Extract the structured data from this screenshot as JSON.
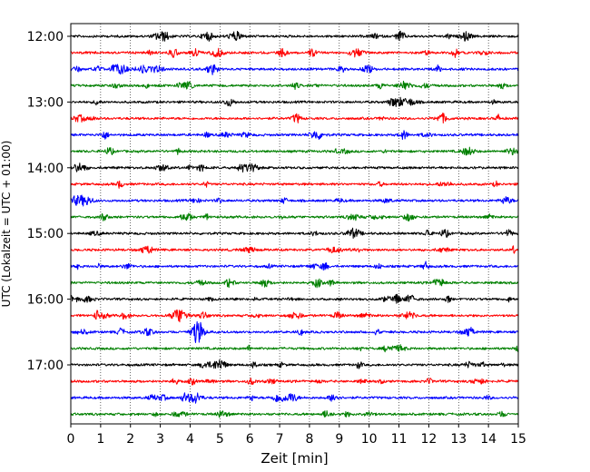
{
  "chart_data": {
    "type": "line",
    "title": "",
    "xlabel": "Zeit  [min]",
    "ylabel": "UTC (Lokalzeit = UTC + 01:00)",
    "xlim": [
      0,
      15
    ],
    "x_ticks": [
      0,
      1,
      2,
      3,
      4,
      5,
      6,
      7,
      8,
      9,
      10,
      11,
      12,
      13,
      14,
      15
    ],
    "y_tick_labels": [
      "12:00",
      "13:00",
      "14:00",
      "15:00",
      "16:00",
      "17:00"
    ],
    "row_interval_minutes": 15,
    "start_time": "12:00",
    "end_time": "17:45",
    "grid": {
      "vertical": true,
      "horizontal": false,
      "style": "dotted"
    },
    "legend": "none",
    "row_colors": [
      "#000000",
      "#ff0000",
      "#0000ff",
      "#008000"
    ],
    "rows": [
      {
        "start": "12:00",
        "color": "#000000"
      },
      {
        "start": "12:15",
        "color": "#ff0000"
      },
      {
        "start": "12:30",
        "color": "#0000ff"
      },
      {
        "start": "12:45",
        "color": "#008000"
      },
      {
        "start": "13:00",
        "color": "#000000"
      },
      {
        "start": "13:15",
        "color": "#ff0000"
      },
      {
        "start": "13:30",
        "color": "#0000ff"
      },
      {
        "start": "13:45",
        "color": "#008000"
      },
      {
        "start": "14:00",
        "color": "#000000"
      },
      {
        "start": "14:15",
        "color": "#ff0000"
      },
      {
        "start": "14:30",
        "color": "#0000ff"
      },
      {
        "start": "14:45",
        "color": "#008000"
      },
      {
        "start": "15:00",
        "color": "#000000"
      },
      {
        "start": "15:15",
        "color": "#ff0000"
      },
      {
        "start": "15:30",
        "color": "#0000ff"
      },
      {
        "start": "15:45",
        "color": "#008000"
      },
      {
        "start": "16:00",
        "color": "#000000"
      },
      {
        "start": "16:15",
        "color": "#ff0000"
      },
      {
        "start": "16:30",
        "color": "#0000ff"
      },
      {
        "start": "16:45",
        "color": "#008000"
      },
      {
        "start": "17:00",
        "color": "#000000"
      },
      {
        "start": "17:15",
        "color": "#ff0000"
      },
      {
        "start": "17:30",
        "color": "#0000ff"
      },
      {
        "start": "17:45",
        "color": "#008000"
      }
    ]
  }
}
